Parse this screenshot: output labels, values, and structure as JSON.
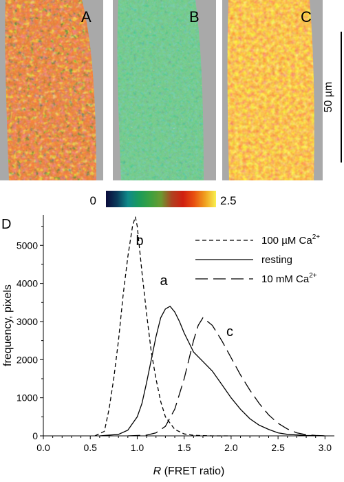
{
  "panels": [
    {
      "label": "A"
    },
    {
      "label": "B"
    },
    {
      "label": "C"
    }
  ],
  "scale_bar": {
    "label": "50 µm"
  },
  "colorbar": {
    "min_label": "0",
    "max_label": "2.5",
    "colors": [
      "#0a0a3a",
      "#0a3a5a",
      "#0f8a8a",
      "#1a9a5a",
      "#3aa040",
      "#6a9a30",
      "#b04020",
      "#d02010",
      "#e85010",
      "#f0a020",
      "#f8f050"
    ]
  },
  "panel_D": {
    "label": "D"
  },
  "chart_data": {
    "type": "line",
    "xlabel_prefix": "R",
    "xlabel_rest": " (FRET ratio)",
    "ylabel": "frequency, pixels",
    "xlim": [
      0.0,
      3.1
    ],
    "ylim": [
      0,
      5800
    ],
    "xticks": [
      "0.0",
      "0.5",
      "1.0",
      "1.5",
      "2.0",
      "2.5",
      "3.0"
    ],
    "yticks": [
      "0",
      "1000",
      "2000",
      "3000",
      "4000",
      "5000"
    ],
    "grid": false,
    "legend_position": "top-right",
    "series": [
      {
        "label": "b",
        "name": "100 µM Ca",
        "superscript": "2+",
        "style": "short-dash",
        "x": [
          0.55,
          0.65,
          0.7,
          0.75,
          0.8,
          0.85,
          0.9,
          0.95,
          0.98,
          1.0,
          1.05,
          1.1,
          1.15,
          1.2,
          1.25,
          1.3,
          1.4,
          1.5,
          1.6,
          1.7,
          1.8,
          2.0
        ],
        "y": [
          0,
          120,
          700,
          1500,
          2500,
          3700,
          4700,
          5500,
          5750,
          5500,
          4300,
          3200,
          2200,
          1500,
          900,
          500,
          170,
          50,
          15,
          5,
          0,
          0
        ]
      },
      {
        "label": "a",
        "name": "resting",
        "superscript": "",
        "style": "solid",
        "x": [
          0.6,
          0.8,
          0.9,
          1.0,
          1.05,
          1.1,
          1.15,
          1.2,
          1.25,
          1.3,
          1.35,
          1.4,
          1.45,
          1.5,
          1.55,
          1.6,
          1.7,
          1.8,
          1.9,
          2.0,
          2.1,
          2.2,
          2.3,
          2.4,
          2.5,
          2.6,
          2.8,
          3.0
        ],
        "y": [
          0,
          40,
          150,
          500,
          850,
          1400,
          2000,
          2600,
          3100,
          3330,
          3400,
          3250,
          3000,
          2700,
          2450,
          2200,
          1950,
          1700,
          1350,
          1000,
          700,
          450,
          280,
          170,
          80,
          40,
          10,
          0
        ]
      },
      {
        "label": "c",
        "name": "10 mM Ca",
        "superscript": "2+",
        "style": "long-dash",
        "x": [
          0.9,
          1.1,
          1.2,
          1.3,
          1.4,
          1.5,
          1.6,
          1.65,
          1.7,
          1.8,
          1.9,
          2.0,
          2.1,
          2.2,
          2.3,
          2.4,
          2.5,
          2.6,
          2.7,
          2.8,
          2.9,
          3.0
        ],
        "y": [
          0,
          20,
          80,
          250,
          700,
          1500,
          2500,
          2900,
          3100,
          2900,
          2500,
          2050,
          1600,
          1200,
          850,
          550,
          330,
          180,
          80,
          30,
          10,
          0
        ]
      }
    ]
  }
}
